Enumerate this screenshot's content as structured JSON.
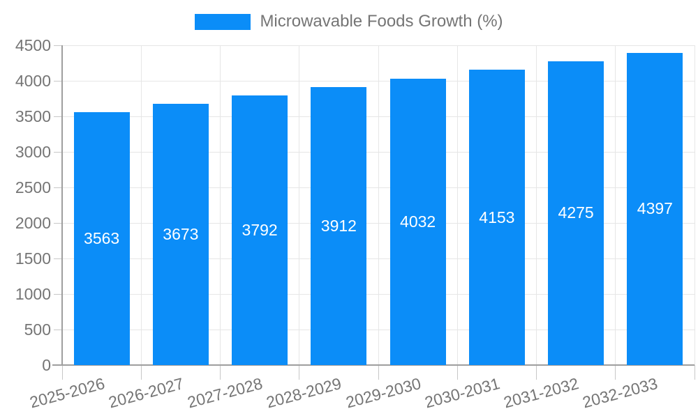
{
  "legend": {
    "label": "Microwavable Foods Growth (%)"
  },
  "colors": {
    "bar": "#0b8df8",
    "axis": "#9e9e9e",
    "gridline": "#e6e6e6",
    "tick": "#c7c7c7",
    "label_text": "#757575",
    "annotation_text": "#ffffff",
    "background": "#ffffff"
  },
  "chart_data": {
    "type": "bar",
    "title": "Microwavable Foods Growth (%)",
    "categories": [
      "2025-2026",
      "2026-2027",
      "2027-2028",
      "2028-2029",
      "2029-2030",
      "2030-2031",
      "2031-2032",
      "2032-2033"
    ],
    "values": [
      3563,
      3673,
      3792,
      3912,
      4032,
      4153,
      4275,
      4397
    ],
    "xlabel": "",
    "ylabel": "",
    "ylim": [
      0,
      4500
    ],
    "ytick_step": 500,
    "yticks": [
      0,
      500,
      1000,
      1500,
      2000,
      2500,
      3000,
      3500,
      4000,
      4500
    ],
    "grid": true,
    "legend_position": "top-center",
    "value_labels": "inside-center"
  }
}
